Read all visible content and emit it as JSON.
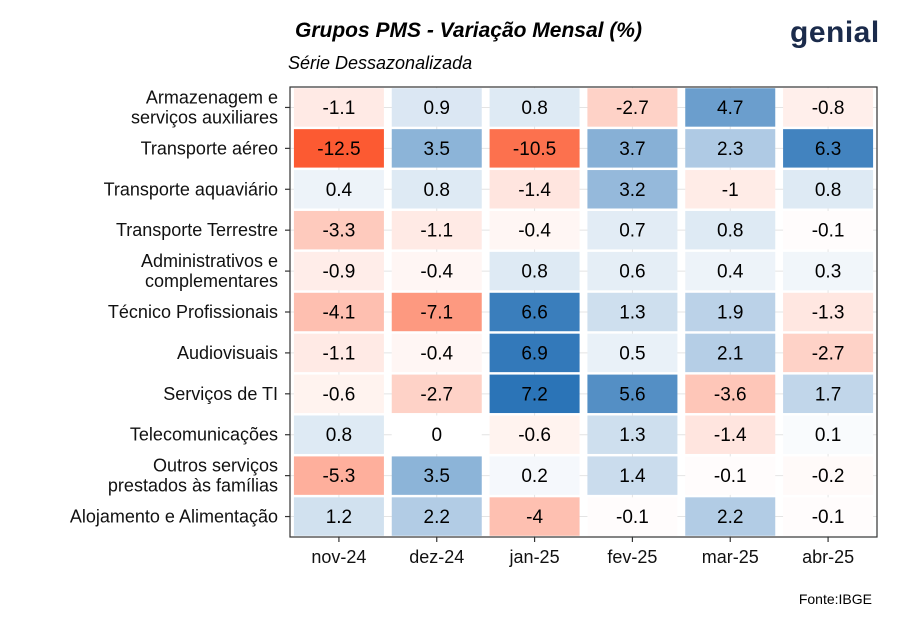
{
  "header": {
    "title": "Grupos PMS - Variação Mensal (%)",
    "subtitle": "Série Dessazonalizada",
    "logo": "genial"
  },
  "footer": {
    "source": "Fonte:IBGE"
  },
  "colors": {
    "negative_max": "#fc5a32",
    "positive_max": "#2b74b7",
    "neutral": "#ffffff",
    "grid": "#e4e4e4",
    "panel_border": "#333333"
  },
  "chart_data": {
    "type": "heatmap",
    "title": "Grupos PMS - Variação Mensal (%)",
    "subtitle": "Série Dessazonalizada",
    "x": [
      "nov-24",
      "dez-24",
      "jan-25",
      "fev-25",
      "mar-25",
      "abr-25"
    ],
    "y": [
      [
        "Armazenagem e",
        "serviços auxiliares"
      ],
      [
        "Transporte aéreo"
      ],
      [
        "Transporte aquaviário"
      ],
      [
        "Transporte Terrestre"
      ],
      [
        "Administrativos e",
        "complementares"
      ],
      [
        "Técnico Profissionais"
      ],
      [
        "Audiovisuais"
      ],
      [
        "Serviços de TI"
      ],
      [
        "Telecomunicações"
      ],
      [
        "Outros serviços",
        "prestados às famílias"
      ],
      [
        "Alojamento e Alimentação"
      ]
    ],
    "values": [
      [
        -1.1,
        0.9,
        0.8,
        -2.7,
        4.7,
        -0.8
      ],
      [
        -12.5,
        3.5,
        -10.5,
        3.7,
        2.3,
        6.3
      ],
      [
        0.4,
        0.8,
        -1.4,
        3.2,
        -1,
        0.8
      ],
      [
        -3.3,
        -1.1,
        -0.4,
        0.7,
        0.8,
        -0.1
      ],
      [
        -0.9,
        -0.4,
        0.8,
        0.6,
        0.4,
        0.3
      ],
      [
        -4.1,
        -7.1,
        6.6,
        1.3,
        1.9,
        -1.3
      ],
      [
        -1.1,
        -0.4,
        6.9,
        0.5,
        2.1,
        -2.7
      ],
      [
        -0.6,
        -2.7,
        7.2,
        5.6,
        -3.6,
        1.7
      ],
      [
        0.8,
        0,
        -0.6,
        1.3,
        -1.4,
        0.1
      ],
      [
        -5.3,
        3.5,
        0.2,
        1.4,
        -0.1,
        -0.2
      ],
      [
        1.2,
        2.2,
        -4,
        -0.1,
        2.2,
        -0.1
      ]
    ],
    "xlabel": "",
    "ylabel": "",
    "grid": true,
    "legend": "none"
  }
}
